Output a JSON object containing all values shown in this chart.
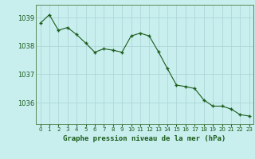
{
  "x": [
    0,
    1,
    2,
    3,
    4,
    5,
    6,
    7,
    8,
    9,
    10,
    11,
    12,
    13,
    14,
    15,
    16,
    17,
    18,
    19,
    20,
    21,
    22,
    23
  ],
  "y": [
    1038.8,
    1039.1,
    1038.55,
    1038.65,
    1038.4,
    1038.1,
    1037.78,
    1037.9,
    1037.85,
    1037.78,
    1038.35,
    1038.45,
    1038.35,
    1037.8,
    1037.2,
    1036.62,
    1036.57,
    1036.5,
    1036.1,
    1035.88,
    1035.88,
    1035.78,
    1035.58,
    1035.53
  ],
  "ylim": [
    1035.25,
    1039.45
  ],
  "yticks": [
    1036,
    1037,
    1038,
    1039
  ],
  "xticks": [
    0,
    1,
    2,
    3,
    4,
    5,
    6,
    7,
    8,
    9,
    10,
    11,
    12,
    13,
    14,
    15,
    16,
    17,
    18,
    19,
    20,
    21,
    22,
    23
  ],
  "line_color": "#1a5c1a",
  "marker_color": "#1a5c1a",
  "bg_color": "#c8eeee",
  "grid_color": "#aad4d4",
  "xlabel": "Graphe pression niveau de la mer (hPa)",
  "xlabel_color": "#1a5c1a",
  "tick_color": "#1a5c1a",
  "spine_color": "#5a8a5a"
}
